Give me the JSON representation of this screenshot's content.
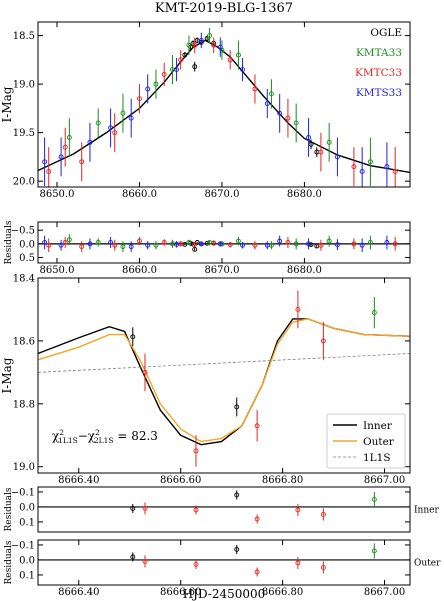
{
  "chart_data": [
    {
      "type": "scatter",
      "title": "KMT-2019-BLG-1367",
      "ylabel": "I-Mag",
      "xlim": [
        8647.7,
        8692.8
      ],
      "ylim": [
        18.36,
        20.06
      ],
      "invert_y": true,
      "xticks": [
        {
          "value": 8650,
          "label": "8650.0"
        },
        {
          "value": 8660,
          "label": "8660.0"
        },
        {
          "value": 8670,
          "label": "8670.0"
        },
        {
          "value": 8680,
          "label": "8680.0"
        }
      ],
      "yticks": [
        18.5,
        {
          "value": 19.0,
          "label": "19.0"
        },
        19.5,
        {
          "value": 20.0,
          "label": "20.0"
        }
      ],
      "series": [
        {
          "name": "OGLE",
          "color": "#000000",
          "x": [
            8665.5,
            8666.2,
            8666.5,
            8666.7,
            8667.0,
            8667.5,
            8668.2,
            8669.0,
            8680.8,
            8681.5
          ],
          "values": [
            18.7,
            18.62,
            18.58,
            18.82,
            18.55,
            18.57,
            18.53,
            18.58,
            19.62,
            19.7
          ],
          "errors": [
            0.03,
            0.03,
            0.03,
            0.05,
            0.03,
            0.03,
            0.03,
            0.03,
            0.05,
            0.05
          ]
        },
        {
          "name": "KMTA33",
          "color": "#1a8c1a",
          "x": [
            8651.5,
            8655,
            8658,
            8662,
            8664,
            8666,
            8668.5,
            8670,
            8672,
            8676,
            8679,
            8683,
            8688
          ],
          "values": [
            19.55,
            19.4,
            19.3,
            19.0,
            18.85,
            18.6,
            18.5,
            18.65,
            18.7,
            19.1,
            19.4,
            19.6,
            19.8
          ],
          "errors": [
            0.2,
            0.15,
            0.2,
            0.15,
            0.15,
            0.1,
            0.08,
            0.1,
            0.15,
            0.15,
            0.2,
            0.2,
            0.25
          ]
        },
        {
          "name": "KMTC33",
          "color": "#e8231f",
          "x": [
            8649,
            8651,
            8653,
            8657,
            8660,
            8663,
            8665,
            8666.7,
            8669,
            8671,
            8674,
            8678,
            8682,
            8686,
            8691
          ],
          "values": [
            19.9,
            19.65,
            19.8,
            19.5,
            19.15,
            18.9,
            18.75,
            18.6,
            18.6,
            18.75,
            19.05,
            19.35,
            19.7,
            19.85,
            19.9
          ],
          "errors": [
            0.25,
            0.2,
            0.2,
            0.2,
            0.15,
            0.12,
            0.1,
            0.08,
            0.08,
            0.1,
            0.15,
            0.2,
            0.2,
            0.2,
            0.25
          ]
        },
        {
          "name": "KMTS33",
          "color": "#1f1fe8",
          "x": [
            8648.5,
            8650.5,
            8654,
            8656.5,
            8659,
            8661,
            8664.5,
            8667.5,
            8669.8,
            8672.5,
            8675.5,
            8677,
            8680.5,
            8684,
            8687,
            8690
          ],
          "values": [
            19.8,
            19.75,
            19.6,
            19.45,
            19.35,
            19.05,
            18.85,
            18.55,
            18.62,
            18.85,
            19.2,
            19.3,
            19.55,
            19.75,
            19.9,
            19.85
          ],
          "errors": [
            0.25,
            0.2,
            0.2,
            0.2,
            0.2,
            0.15,
            0.12,
            0.08,
            0.1,
            0.12,
            0.15,
            0.2,
            0.2,
            0.2,
            0.25,
            0.25
          ]
        }
      ],
      "lines": [
        {
          "color": "#000000",
          "x": [
            8647.7,
            8652,
            8656,
            8660,
            8663,
            8665,
            8666.5,
            8668,
            8669.5,
            8671,
            8673,
            8675,
            8678,
            8680,
            8684,
            8688,
            8692.8
          ],
          "values": [
            19.89,
            19.72,
            19.5,
            19.25,
            18.98,
            18.77,
            18.62,
            18.55,
            18.62,
            18.72,
            18.92,
            19.12,
            19.4,
            19.56,
            19.73,
            19.84,
            19.91
          ]
        }
      ],
      "legend": "upper right",
      "legend_style": "text"
    },
    {
      "type": "scatter",
      "ylabel": "Residuals",
      "xlim": [
        8647.7,
        8692.8
      ],
      "ylim": [
        -0.8,
        0.7
      ],
      "invert_y": true,
      "xticks": [
        {
          "value": 8650,
          "label": "8650.0"
        },
        {
          "value": 8660,
          "label": "8660.0"
        },
        {
          "value": 8670,
          "label": "8670.0"
        },
        {
          "value": 8680,
          "label": "8680.0"
        }
      ],
      "yticks": [
        {
          "value": -0.5,
          "label": "−0.5"
        },
        {
          "value": 0.0,
          "label": "0.0"
        },
        0.5
      ],
      "series": [
        {
          "color": "#000000",
          "x": [
            8665.5,
            8666.2,
            8666.5,
            8666.7,
            8667.0,
            8667.5,
            8668.2,
            8669.0,
            8680.8,
            8681.5
          ],
          "values": [
            0.02,
            -0.02,
            0.01,
            0.2,
            -0.05,
            0.0,
            -0.02,
            -0.03,
            0.03,
            0.08
          ],
          "errors": [
            0.03,
            0.03,
            0.03,
            0.05,
            0.03,
            0.03,
            0.03,
            0.03,
            0.05,
            0.05
          ]
        },
        {
          "color": "#1a8c1a",
          "x": [
            8651.5,
            8655,
            8658,
            8662,
            8664,
            8666,
            8668.5,
            8670,
            8672,
            8676,
            8679,
            8683,
            8688
          ],
          "values": [
            -0.15,
            -0.05,
            0.1,
            0.05,
            0.0,
            -0.05,
            -0.05,
            0.0,
            -0.1,
            0.05,
            0.0,
            -0.1,
            -0.05
          ],
          "errors": [
            0.2,
            0.15,
            0.2,
            0.15,
            0.15,
            0.1,
            0.08,
            0.1,
            0.15,
            0.15,
            0.2,
            0.2,
            0.25
          ]
        },
        {
          "color": "#e8231f",
          "x": [
            8649,
            8651,
            8653,
            8657,
            8660,
            8663,
            8665,
            8666.7,
            8669,
            8671,
            8674,
            8678,
            8682,
            8686,
            8691
          ],
          "values": [
            0.05,
            -0.05,
            0.1,
            0.05,
            -0.1,
            -0.05,
            0.0,
            0.02,
            -0.02,
            0.03,
            0.05,
            -0.05,
            0.05,
            0.0,
            0.0
          ],
          "errors": [
            0.25,
            0.2,
            0.2,
            0.2,
            0.15,
            0.12,
            0.1,
            0.08,
            0.08,
            0.1,
            0.15,
            0.2,
            0.2,
            0.2,
            0.25
          ]
        },
        {
          "color": "#1f1fe8",
          "x": [
            8648.5,
            8650.5,
            8654,
            8656.5,
            8659,
            8661,
            8664.5,
            8667.5,
            8669.8,
            8672.5,
            8675.5,
            8677,
            8680.5,
            8684,
            8687,
            8690
          ],
          "values": [
            -0.05,
            0.05,
            0.0,
            -0.05,
            0.1,
            0.05,
            0.02,
            0.0,
            0.0,
            0.05,
            0.05,
            -0.1,
            0.0,
            0.03,
            0.05,
            -0.05
          ],
          "errors": [
            0.25,
            0.2,
            0.2,
            0.2,
            0.2,
            0.15,
            0.12,
            0.08,
            0.1,
            0.12,
            0.15,
            0.2,
            0.2,
            0.2,
            0.25,
            0.25
          ]
        }
      ]
    },
    {
      "type": "scatter",
      "ylabel": "I-Mag",
      "xlim": [
        8666.32,
        8667.05
      ],
      "ylim": [
        18.4,
        19.02
      ],
      "invert_y": true,
      "xticks": [
        {
          "value": 8666.4,
          "label": "8666.40"
        },
        {
          "value": 8666.6,
          "label": "8666.60"
        },
        {
          "value": 8666.8,
          "label": "8666.80"
        },
        {
          "value": 8667.0,
          "label": "8667.00"
        }
      ],
      "yticks": [
        18.4,
        18.6,
        18.8,
        {
          "value": 19.0,
          "label": "19.0"
        }
      ],
      "series": [
        {
          "color": "#000000",
          "x": [
            8666.506,
            8666.71
          ],
          "values": [
            18.587,
            18.81
          ],
          "errors": [
            0.03,
            0.03
          ]
        },
        {
          "color": "#e8231f",
          "x": [
            8666.53,
            8666.63,
            8666.75,
            8666.83,
            8666.88
          ],
          "values": [
            18.7,
            18.95,
            18.87,
            18.5,
            18.6
          ],
          "errors": [
            0.06,
            0.05,
            0.05,
            0.06,
            0.06
          ]
        },
        {
          "color": "#1a8c1a",
          "x": [
            8666.98
          ],
          "values": [
            18.51
          ],
          "errors": [
            0.05
          ]
        }
      ],
      "lines": [
        {
          "name": "Inner",
          "color": "#000000",
          "x": [
            8666.32,
            8666.4,
            8666.46,
            8666.49,
            8666.52,
            8666.56,
            8666.6,
            8666.64,
            8666.68,
            8666.72,
            8666.76,
            8666.79,
            8666.82,
            8666.85,
            8666.9,
            8666.96,
            8667.05
          ],
          "values": [
            18.64,
            18.59,
            18.555,
            18.57,
            18.68,
            18.82,
            18.9,
            18.93,
            18.92,
            18.87,
            18.74,
            18.6,
            18.53,
            18.53,
            18.56,
            18.58,
            18.585
          ]
        },
        {
          "name": "Outer",
          "color": "#f5a623",
          "x": [
            8666.32,
            8666.4,
            8666.46,
            8666.49,
            8666.52,
            8666.56,
            8666.6,
            8666.64,
            8666.68,
            8666.72,
            8666.76,
            8666.79,
            8666.82,
            8666.85,
            8666.9,
            8666.96,
            8667.05
          ],
          "values": [
            18.66,
            18.62,
            18.58,
            18.58,
            18.66,
            18.8,
            18.88,
            18.92,
            18.91,
            18.87,
            18.74,
            18.61,
            18.54,
            18.53,
            18.56,
            18.58,
            18.585
          ]
        },
        {
          "name": "1L1S",
          "color": "#808080",
          "dashed": true,
          "x": [
            8666.32,
            8667.05
          ],
          "values": [
            18.7,
            18.64
          ]
        }
      ],
      "legend": "lower right",
      "legend_style": "box",
      "annotation": [
        "χ",
        "2",
        "1L1S",
        "−χ",
        "2",
        "2L1S",
        " = 82.3"
      ]
    },
    {
      "type": "scatter",
      "ylabel": "Residuals",
      "panel_label": "Inner",
      "xlim": [
        8666.32,
        8667.05
      ],
      "ylim": [
        -0.133,
        0.167
      ],
      "invert_y": true,
      "yticks": [
        {
          "value": -0.1,
          "label": "−0.1"
        },
        {
          "value": 0.0,
          "label": "0.0"
        },
        0.1
      ],
      "series": [
        {
          "color": "#000000",
          "x": [
            8666.506,
            8666.71
          ],
          "values": [
            0.01,
            -0.08
          ],
          "errors": [
            0.03,
            0.03
          ]
        },
        {
          "color": "#e8231f",
          "x": [
            8666.53,
            8666.63,
            8666.75,
            8666.83,
            8666.88
          ],
          "values": [
            0.01,
            0.02,
            0.08,
            0.02,
            0.05
          ],
          "errors": [
            0.04,
            0.03,
            0.03,
            0.04,
            0.04
          ]
        },
        {
          "color": "#1a8c1a",
          "x": [
            8666.98
          ],
          "values": [
            -0.05
          ],
          "errors": [
            0.05
          ]
        }
      ]
    },
    {
      "type": "scatter",
      "ylabel": "Residuals",
      "panel_label": "Outer",
      "xlabel": "HJD-2450000",
      "xlim": [
        8666.32,
        8667.05
      ],
      "ylim": [
        -0.133,
        0.167
      ],
      "invert_y": true,
      "xticks": [
        {
          "value": 8666.4,
          "label": "8666.40"
        },
        {
          "value": 8666.6,
          "label": "8666.60"
        },
        {
          "value": 8666.8,
          "label": "8666.80"
        },
        {
          "value": 8667.0,
          "label": "8667.00"
        }
      ],
      "yticks": [
        {
          "value": -0.1,
          "label": "−0.1"
        },
        {
          "value": 0.0,
          "label": "0.0"
        },
        0.1
      ],
      "series": [
        {
          "color": "#000000",
          "x": [
            8666.506,
            8666.71
          ],
          "values": [
            -0.02,
            -0.07
          ],
          "errors": [
            0.03,
            0.03
          ]
        },
        {
          "color": "#e8231f",
          "x": [
            8666.53,
            8666.63,
            8666.75,
            8666.83,
            8666.88
          ],
          "values": [
            0.01,
            0.03,
            0.08,
            0.02,
            0.05
          ],
          "errors": [
            0.04,
            0.03,
            0.03,
            0.04,
            0.04
          ]
        },
        {
          "color": "#1a8c1a",
          "x": [
            8666.98
          ],
          "values": [
            -0.06
          ],
          "errors": [
            0.05
          ]
        }
      ]
    }
  ]
}
